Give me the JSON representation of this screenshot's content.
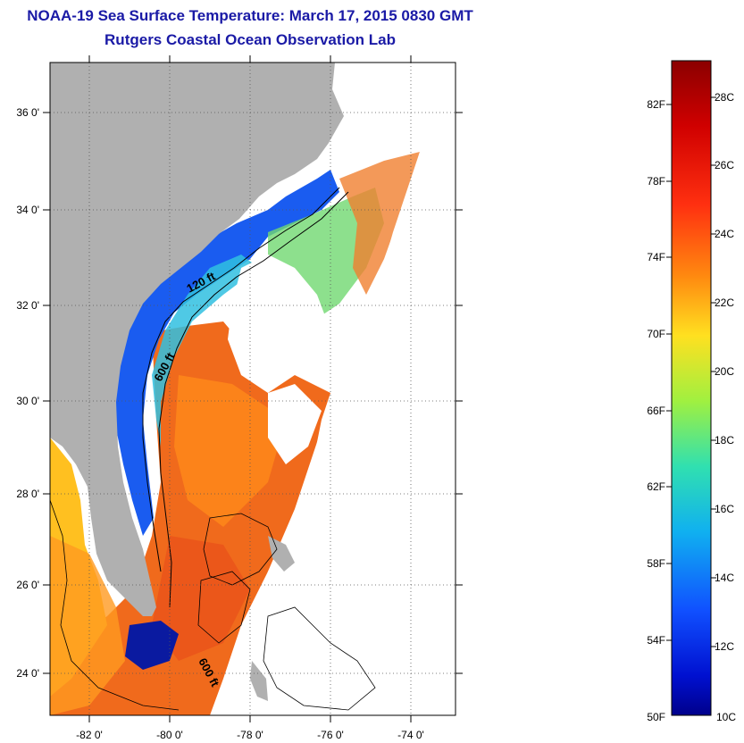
{
  "header": {
    "title": "NOAA-19 Sea Surface Temperature:  March 17, 2015 0830 GMT",
    "subtitle": "Rutgers Coastal Ocean Observation Lab"
  },
  "map": {
    "lat_ticks": [
      "36 0'",
      "34 0'",
      "32 0'",
      "30 0'",
      "28 0'",
      "26 0'",
      "24 0'"
    ],
    "lon_ticks": [
      "-82 0'",
      "-80 0'",
      "-78 0'",
      "-76 0'",
      "-74 0'"
    ],
    "lat_range": [
      23,
      37
    ],
    "lon_range": [
      -83,
      -73
    ],
    "contour_labels": [
      "120 ft",
      "600 ft",
      "600 ft"
    ],
    "land_color": "#b0b0b0",
    "no_data_color": "#ffffff"
  },
  "colorbar": {
    "f_labels": [
      "82F",
      "78F",
      "74F",
      "70F",
      "66F",
      "62F",
      "58F",
      "54F",
      "50F"
    ],
    "c_labels": [
      "28C",
      "26C",
      "24C",
      "22C",
      "20C",
      "18C",
      "16C",
      "14C",
      "12C",
      "10C"
    ],
    "range_c": [
      10,
      29
    ],
    "colors": [
      "#8b0000",
      "#e01010",
      "#ff6a10",
      "#ffd21a",
      "#c8f030",
      "#40e0a0",
      "#18c0e0",
      "#1060f0",
      "#0010c0",
      "#00008b"
    ]
  }
}
